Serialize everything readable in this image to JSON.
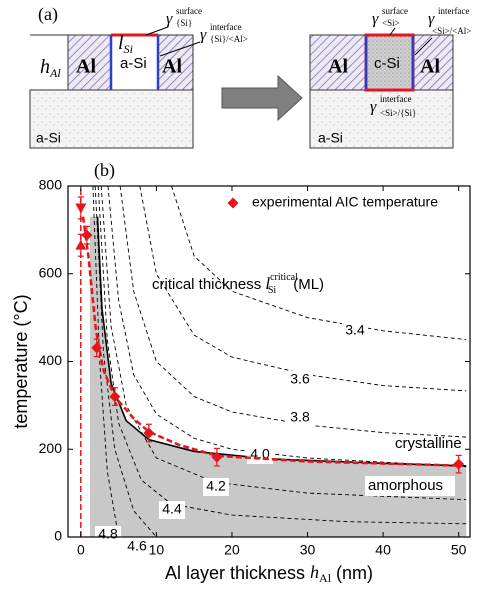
{
  "panel_a": {
    "label": "(a)",
    "left": {
      "l": "l",
      "l_sub": "Si",
      "gamma_surface": {
        "symbol": "γ",
        "sup": "surface",
        "sub": "{Si}"
      },
      "gamma_interface": {
        "symbol": "γ",
        "sup": "interface",
        "sub": "{Si}/<Al>"
      },
      "h": "h",
      "h_sub": "Al",
      "al_left": "Al",
      "middle": "a-Si",
      "al_right": "Al",
      "substrate": "a-Si"
    },
    "right": {
      "gamma_surface": {
        "symbol": "γ",
        "sup": "surface",
        "sub": "<Si>"
      },
      "gamma_interface": {
        "symbol": "γ",
        "sup": "interface",
        "sub": "<Si>/<Al>"
      },
      "gamma_bottom": {
        "symbol": "γ",
        "sup": "interface",
        "sub": "<Si>/{Si}"
      },
      "al_left": "Al",
      "middle": "c-Si",
      "al_right": "Al",
      "substrate": "a-Si"
    }
  },
  "chart_data": {
    "type": "scatter",
    "panel_label": "(b)",
    "x_label": {
      "text": "Al layer thickness ",
      "h": "h",
      "h_sub": "Al",
      "unit": " (nm)"
    },
    "y_label": "temperature (°C)",
    "xlim": [
      -1.7,
      51.5
    ],
    "ylim": [
      0,
      800
    ],
    "xticks": [
      0,
      10,
      20,
      30,
      40,
      50
    ],
    "yticks": [
      0,
      200,
      400,
      600,
      800
    ],
    "annotation": {
      "text": "critical thickness ",
      "l": "l",
      "sub": "Si",
      "sup": "critical",
      "unit": "(ML)"
    },
    "region_crystalline": "crystalline",
    "region_amorphous": "amorphous",
    "region_color": "#c8c8c8",
    "boundary": {
      "x": [
        1.2,
        2.2,
        2.8,
        4,
        6,
        9,
        15,
        25,
        40,
        51
      ],
      "values": [
        730,
        730,
        520,
        350,
        265,
        222,
        195,
        178,
        168,
        162
      ]
    },
    "contours": [
      {
        "name": "3.4",
        "x": [
          12,
          15,
          20,
          30,
          40,
          51
        ],
        "values": [
          800,
          640,
          560,
          500,
          470,
          450
        ]
      },
      {
        "name": "3.6",
        "x": [
          7.8,
          10,
          15,
          20,
          30,
          40,
          51
        ],
        "values": [
          800,
          600,
          460,
          410,
          370,
          345,
          333
        ]
      },
      {
        "name": "3.8",
        "x": [
          5.2,
          7,
          10,
          15,
          20,
          30,
          40,
          51
        ],
        "values": [
          800,
          560,
          400,
          320,
          285,
          255,
          238,
          228
        ]
      },
      {
        "name": "4.0",
        "x": [
          3.6,
          5,
          7,
          10,
          15,
          20,
          30,
          51
        ],
        "values": [
          800,
          540,
          370,
          280,
          225,
          200,
          180,
          160
        ]
      },
      {
        "name": "4.2",
        "x": [
          2.7,
          4,
          6,
          10,
          17.7,
          30,
          51
        ],
        "values": [
          800,
          480,
          300,
          180,
          125,
          100,
          85
        ]
      },
      {
        "name": "4.4",
        "x": [
          2.3,
          3.5,
          5,
          8,
          12,
          20,
          35,
          51
        ],
        "values": [
          800,
          450,
          260,
          130,
          75,
          50,
          35,
          30
        ]
      },
      {
        "name": "4.6",
        "x": [
          1.9,
          3,
          4.5,
          7,
          10
        ],
        "values": [
          800,
          420,
          200,
          60,
          0
        ]
      },
      {
        "name": "4.8",
        "x": [
          1.6,
          2.5,
          3.5,
          5
        ],
        "values": [
          800,
          400,
          150,
          0
        ]
      }
    ],
    "fit": {
      "color": "#e8141c",
      "x": [
        0.3,
        1,
        2,
        3,
        4.5,
        7,
        9,
        13,
        18,
        30,
        50
      ],
      "values": [
        730,
        640,
        470,
        380,
        320,
        270,
        240,
        210,
        185,
        172,
        163
      ]
    },
    "fit_vertical": {
      "x": [
        0,
        0
      ],
      "values": [
        0,
        800
      ]
    },
    "series": [
      {
        "name": "experimental AIC temperature",
        "color": "#e8141c",
        "marker": "diamond",
        "x": [
          0.8,
          2.1,
          4.5,
          9,
          18,
          50
        ],
        "values": [
          688,
          431,
          320,
          237,
          182,
          166
        ],
        "yerr": [
          20,
          20,
          20,
          20,
          20,
          20
        ]
      },
      {
        "color": "#e8141c",
        "marker": "triangle-up",
        "x": [
          0
        ],
        "values": [
          665
        ],
        "yerr": [
          25
        ]
      },
      {
        "color": "#e8141c",
        "marker": "triangle-down",
        "x": [
          0
        ],
        "values": [
          750
        ],
        "yerr": [
          25
        ]
      }
    ]
  }
}
